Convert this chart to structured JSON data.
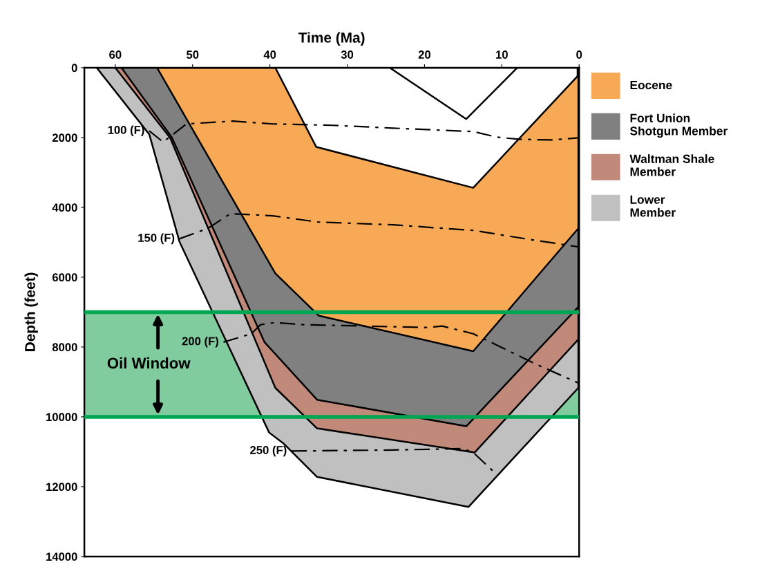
{
  "chart_data": {
    "type": "area",
    "xlabel": "Time (Ma)",
    "ylabel": "Depth (feet)",
    "xlim": [
      64,
      0
    ],
    "xticks": [
      60,
      50,
      40,
      30,
      20,
      10,
      0
    ],
    "ylim": [
      14000,
      0
    ],
    "yticks": [
      0,
      2000,
      4000,
      6000,
      8000,
      10000,
      12000,
      14000
    ],
    "legend": "right",
    "series": [
      {
        "name": "Lower\nMember",
        "color": "#c0c0c0",
        "x": [
          62.4,
          55.6,
          51.7,
          40.1,
          38.2,
          33.9,
          14.3,
          0.1
        ],
        "values": [
          0,
          1910,
          4980,
          10450,
          10770,
          11720,
          12580,
          9170
        ]
      },
      {
        "name": "Waltman Shale\nMember",
        "color": "#c0897a",
        "x": [
          60,
          52.9,
          39.3,
          33.9,
          13.5,
          0.1
        ],
        "values": [
          0,
          2010,
          9170,
          10330,
          11020,
          7780
        ]
      },
      {
        "name": "Fort Union\nShotgun Member",
        "color": "#808080",
        "x": [
          59.2,
          52.7,
          40.7,
          33.9,
          14.6,
          0.1
        ],
        "values": [
          0,
          1990,
          7860,
          9510,
          10270,
          6850
        ]
      },
      {
        "name": "Eocene",
        "color": "#f7a955",
        "x": [
          54.6,
          39.3,
          33.7,
          13.7,
          0.1
        ],
        "values": [
          0,
          5890,
          7100,
          8120,
          4600
        ]
      },
      {
        "color": "#ffffff",
        "x": [
          54.6,
          39.3,
          34.0,
          13.7,
          0.2
        ],
        "values": [
          0,
          0,
          2270,
          3440,
          240
        ]
      },
      {
        "type": "line",
        "color": "#000000",
        "line_style": "solid",
        "x": [
          24.5,
          14.6,
          8.0
        ],
        "values": [
          0,
          1470,
          0
        ]
      },
      {
        "type": "line",
        "name": "100 (F)",
        "color": "#000000",
        "line_style": "dashed",
        "x": [
          55.6,
          53.8,
          50.8,
          44.8,
          39.7,
          31.9,
          24.1,
          13.7,
          10.6,
          7.8,
          3.5,
          0.2
        ],
        "values": [
          1810,
          2130,
          1610,
          1530,
          1610,
          1650,
          1730,
          1830,
          1990,
          2050,
          2070,
          2010
        ]
      },
      {
        "type": "line",
        "name": "150 (F)",
        "color": "#000000",
        "line_style": "dashed",
        "x": [
          51.7,
          48.0,
          45.1,
          39.7,
          33.8,
          24.1,
          13.7,
          5.8,
          0.1
        ],
        "values": [
          4900,
          4600,
          4180,
          4240,
          4420,
          4500,
          4660,
          4940,
          5130
        ]
      },
      {
        "type": "line",
        "name": "200 (F)",
        "color": "#000000",
        "line_style": "dashed",
        "x": [
          46.0,
          42.4,
          41.2,
          39.3,
          35.6,
          19.6,
          17.7,
          13.7,
          5.3,
          0.1
        ],
        "values": [
          7860,
          7620,
          7360,
          7300,
          7360,
          7440,
          7400,
          7620,
          8520,
          9030
        ]
      },
      {
        "type": "line",
        "name": "250 (F)",
        "color": "#000000",
        "line_style": "dashed",
        "x": [
          37.2,
          24.1,
          15.1,
          13.7,
          11.2
        ],
        "values": [
          10980,
          10950,
          10910,
          11020,
          11540
        ]
      }
    ],
    "bands": [
      {
        "axis": "y",
        "from": 7000,
        "to": 10000,
        "label": "Oil Window",
        "color": "#80cc9f"
      }
    ],
    "ref_lines": [
      {
        "axis": "y",
        "value": 7000,
        "color": "#00a651"
      },
      {
        "axis": "y",
        "value": 10000,
        "color": "#00a651"
      }
    ]
  }
}
